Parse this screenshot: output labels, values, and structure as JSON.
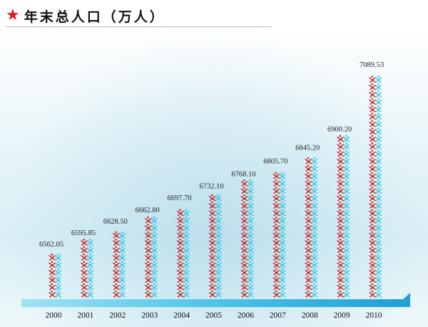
{
  "header": {
    "star_icon": "★",
    "title": "年末总人口（万人）"
  },
  "colors": {
    "star": "#e01818",
    "accent_red": "#d42020",
    "accent_cyan": "#38c4dc",
    "base_bar": "#2fb5df"
  },
  "icon_names": [
    "star-icon",
    "person-pair-icon"
  ],
  "chart_data": {
    "type": "bar",
    "categories": [
      "2000",
      "2001",
      "2002",
      "2003",
      "2004",
      "2005",
      "2006",
      "2007",
      "2008",
      "2009",
      "2010"
    ],
    "values": [
      6562.05,
      6595.85,
      6628.5,
      6662.8,
      6697.7,
      6732.1,
      6768.1,
      6805.7,
      6845.2,
      6900.2,
      7089.53
    ],
    "value_labels": [
      "6562.05",
      "6595.85",
      "6628.50",
      "6662.80",
      "6697.70",
      "6732.10",
      "6768.10",
      "6805.70",
      "6845.20",
      "6900.20",
      "7089.53"
    ],
    "title": "年末总人口（万人）",
    "xlabel": "",
    "ylabel": "",
    "grid": false,
    "legend": "none"
  }
}
